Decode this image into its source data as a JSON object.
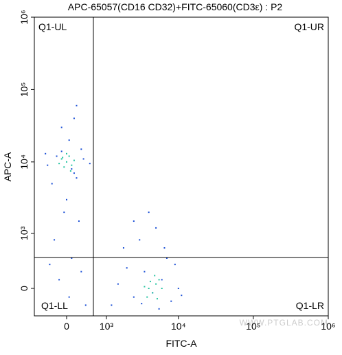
{
  "chart_data": {
    "type": "scatter",
    "title": "APC-65057(CD16 CD32)+FITC-65060(CD3ε) : P2",
    "x_label": "FITC-A",
    "y_label": "APC-A",
    "xscale": "biexponential",
    "yscale": "biexponential",
    "xlim": [
      -750,
      1000000
    ],
    "ylim": [
      -354,
      1000000
    ],
    "xticks": [
      0,
      {
        "value": 1000,
        "label": "10³"
      },
      {
        "value": 10000,
        "label": "10⁴"
      },
      {
        "value": 100000,
        "label": "10⁵"
      },
      {
        "value": 1000000,
        "label": "10⁶"
      }
    ],
    "yticks": [
      0,
      {
        "value": 1000,
        "label": "10³"
      },
      {
        "value": 10000,
        "label": "10⁴"
      },
      {
        "value": 100000,
        "label": "10⁵"
      },
      {
        "value": 1000000,
        "label": "10⁶"
      }
    ],
    "gate": {
      "x": 592,
      "y": 412
    },
    "quadrants": {
      "ul": "Q1-UL",
      "ur": "Q1-UR",
      "ll": "Q1-LL",
      "lr": "Q1-LR"
    },
    "watermark": "WWW.PTGLAB.COM",
    "series": [
      {
        "color": "#1a4fd6",
        "x": [
          -200,
          100,
          300,
          -400,
          50,
          200,
          -100,
          350,
          -300,
          150,
          0,
          -50,
          250,
          -250,
          100,
          300,
          -150,
          50,
          400,
          -350,
          200,
          -100,
          500,
          -450,
          150,
          1500,
          2500,
          3500,
          4500,
          6000,
          8000,
          9000,
          2000,
          1200,
          7000,
          3000,
          5000,
          4000,
          2500,
          6500,
          10000,
          1800,
          11000,
          5500,
          3200
        ],
        "y": [
          12000,
          8000,
          15000,
          9000,
          20000,
          6000,
          30000,
          11000,
          5000,
          40000,
          3000,
          2000,
          1500,
          800,
          400,
          200,
          100,
          -100,
          -200,
          300,
          60000,
          14000,
          9500,
          13000,
          7000,
          50,
          -100,
          200,
          -50,
          100,
          -150,
          300,
          250,
          -200,
          400,
          800,
          1200,
          2000,
          1500,
          600,
          0,
          600,
          -80,
          -250,
          -180
        ]
      },
      {
        "color": "#22c3a0",
        "x": [
          0,
          -100,
          100,
          50,
          -50,
          150,
          -150,
          0,
          80,
          -80,
          4000,
          5000,
          4500,
          5500,
          3800,
          6000,
          4800,
          5200,
          4200,
          3500
        ],
        "y": [
          10000,
          11000,
          9000,
          12000,
          8500,
          10500,
          9500,
          13000,
          7500,
          11500,
          0,
          50,
          -50,
          100,
          -100,
          0,
          150,
          -120,
          80,
          20
        ]
      }
    ]
  }
}
